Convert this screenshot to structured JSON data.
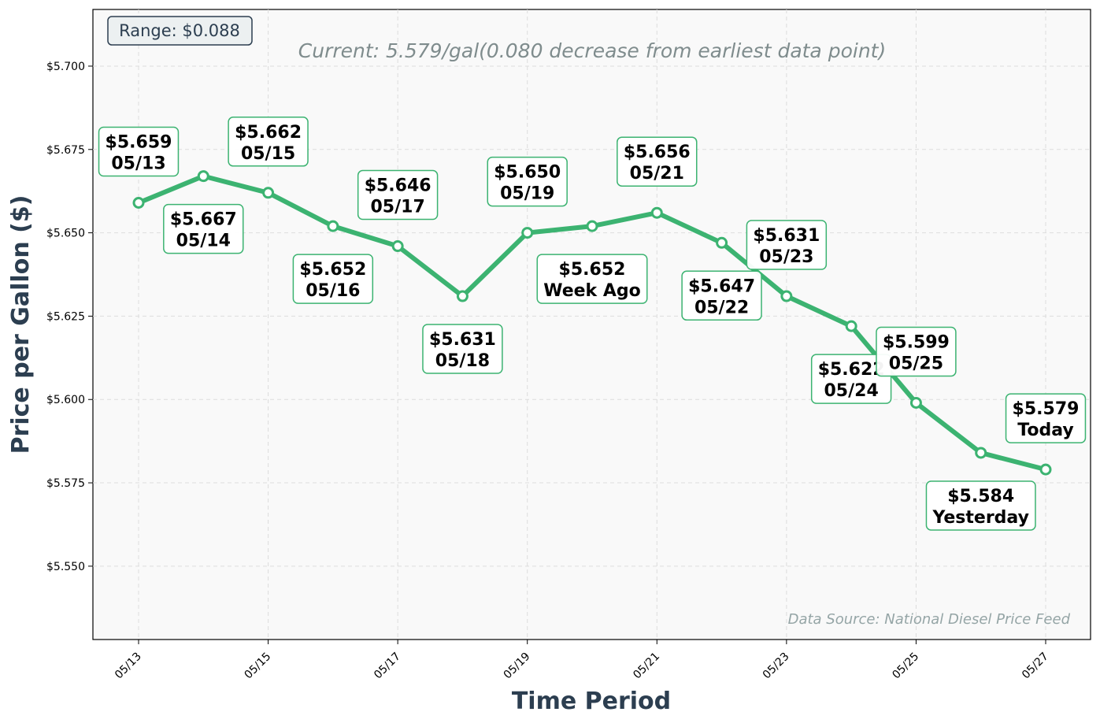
{
  "chart_data": {
    "type": "line",
    "xlabel": "Time Period",
    "ylabel": "Price per Gallon ($)",
    "subtitle": "Current: 5.579/gal(0.080 decrease from earliest data point)",
    "range_label": "Range: $0.088",
    "source": "Data Source: National Diesel Price Feed",
    "ylim": [
      5.528,
      5.717
    ],
    "y_ticks": [
      5.55,
      5.575,
      5.6,
      5.625,
      5.65,
      5.675,
      5.7
    ],
    "y_tick_labels": [
      "$5.550",
      "$5.575",
      "$5.600",
      "$5.625",
      "$5.650",
      "$5.675",
      "$5.700"
    ],
    "x_tick_labels": [
      "05/13",
      "05/15",
      "05/17",
      "05/19",
      "05/21",
      "05/23",
      "05/25",
      "05/27"
    ],
    "x_tick_dates": [
      "05/13",
      "05/15",
      "05/17",
      "05/19",
      "05/21",
      "05/23",
      "05/25",
      "05/27"
    ],
    "grid": true,
    "series_color": "#3cb371",
    "points": [
      {
        "date": "05/13",
        "value": 5.659,
        "label_price": "$5.659",
        "label_date": "05/13"
      },
      {
        "date": "05/14",
        "value": 5.667,
        "label_price": "$5.667",
        "label_date": "05/14"
      },
      {
        "date": "05/15",
        "value": 5.662,
        "label_price": "$5.662",
        "label_date": "05/15"
      },
      {
        "date": "05/16",
        "value": 5.652,
        "label_price": "$5.652",
        "label_date": "05/16"
      },
      {
        "date": "05/17",
        "value": 5.646,
        "label_price": "$5.646",
        "label_date": "05/17"
      },
      {
        "date": "05/18",
        "value": 5.631,
        "label_price": "$5.631",
        "label_date": "05/18"
      },
      {
        "date": "05/19",
        "value": 5.65,
        "label_price": "$5.650",
        "label_date": "05/19"
      },
      {
        "date": "05/20",
        "value": 5.652,
        "label_price": "$5.652",
        "label_date": "Week Ago"
      },
      {
        "date": "05/21",
        "value": 5.656,
        "label_price": "$5.656",
        "label_date": "05/21"
      },
      {
        "date": "05/22",
        "value": 5.647,
        "label_price": "$5.647",
        "label_date": "05/22"
      },
      {
        "date": "05/23",
        "value": 5.631,
        "label_price": "$5.631",
        "label_date": "05/23"
      },
      {
        "date": "05/24",
        "value": 5.622,
        "label_price": "$5.622",
        "label_date": "05/24"
      },
      {
        "date": "05/25",
        "value": 5.599,
        "label_price": "$5.599",
        "label_date": "05/25"
      },
      {
        "date": "05/26",
        "value": 5.584,
        "label_price": "$5.584",
        "label_date": "Yesterday"
      },
      {
        "date": "05/27",
        "value": 5.579,
        "label_price": "$5.579",
        "label_date": "Today"
      }
    ]
  }
}
